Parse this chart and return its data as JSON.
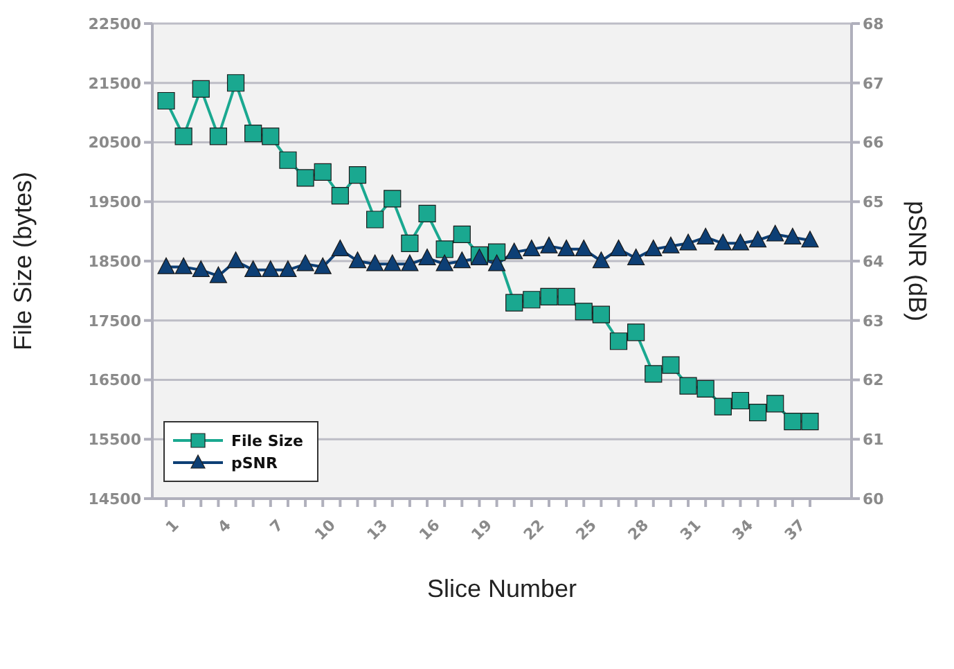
{
  "chart_data": {
    "type": "line",
    "xlabel": "Slice Number",
    "ylabel": "File Size (bytes)",
    "y2label": "pSNR (dB)",
    "categories": [
      "1",
      null,
      null,
      "4",
      null,
      null,
      "7",
      null,
      null,
      "10",
      null,
      null,
      "13",
      null,
      null,
      "16",
      null,
      null,
      "19",
      null,
      null,
      "22",
      null,
      null,
      "25",
      null,
      null,
      "28",
      null,
      null,
      "31",
      null,
      null,
      "34",
      null,
      null,
      "37",
      null
    ],
    "series": [
      {
        "name": "File Size",
        "color": "#1aa890",
        "marker": "square",
        "values": [
          21200,
          20600,
          21400,
          20600,
          21500,
          20650,
          20600,
          20200,
          19900,
          20000,
          19600,
          19950,
          19200,
          19550,
          18800,
          19300,
          18700,
          18950,
          18600,
          18650,
          17800,
          17850,
          17900,
          17900,
          17650,
          17600,
          17150,
          17300,
          16600,
          16750,
          16400,
          16350,
          16050,
          16150,
          15950,
          16100,
          15800,
          15800
        ]
      },
      {
        "name": "pSNR",
        "color": "#0d3f75",
        "marker": "triangle",
        "axis": "y2",
        "values": [
          63.9,
          63.9,
          63.85,
          63.75,
          64.0,
          63.85,
          63.85,
          63.85,
          63.95,
          63.9,
          64.2,
          64.0,
          63.95,
          63.95,
          63.95,
          64.05,
          63.95,
          64.0,
          64.05,
          63.95,
          64.15,
          64.2,
          64.25,
          64.2,
          64.2,
          64.0,
          64.2,
          64.05,
          64.2,
          64.25,
          64.3,
          64.4,
          64.3,
          64.3,
          64.35,
          64.45,
          64.4,
          64.35
        ]
      }
    ],
    "ylim": [
      14500,
      22500
    ],
    "yticks": [
      14500,
      15500,
      16500,
      17500,
      18500,
      19500,
      20500,
      21500,
      22500
    ],
    "y2lim": [
      60,
      68
    ],
    "y2ticks": [
      60,
      61,
      62,
      63,
      64,
      65,
      66,
      67,
      68
    ],
    "grid": "y",
    "legend": "bottom left",
    "line_style": "solid"
  }
}
